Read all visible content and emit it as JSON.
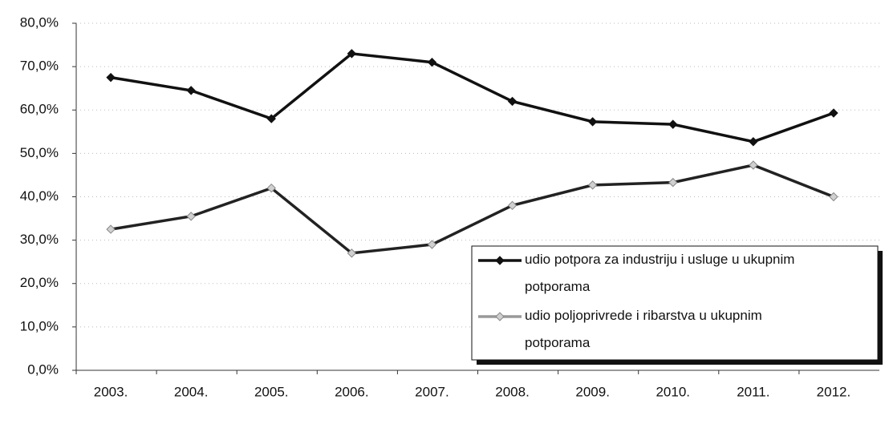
{
  "chart_data": {
    "type": "line",
    "categories": [
      "2003.",
      "2004.",
      "2005.",
      "2006.",
      "2007.",
      "2008.",
      "2009.",
      "2010.",
      "2011.",
      "2012."
    ],
    "series": [
      {
        "name": "udio potpora za industriju i usluge u ukupnim potporama",
        "color": "#111111",
        "marker_color": "#111111",
        "values": [
          67.5,
          64.5,
          58,
          73,
          71,
          62,
          57.3,
          56.7,
          52.7,
          59.3
        ]
      },
      {
        "name": "udio poljoprivrede i ribarstva u ukupnim potporama",
        "color": "#222222",
        "marker_color": "#d0d0d0",
        "values": [
          32.5,
          35.5,
          42,
          27,
          29,
          38,
          42.7,
          43.3,
          47.3,
          40
        ]
      }
    ],
    "ylim": [
      0,
      80
    ],
    "yticks": [
      {
        "value": 0,
        "label": "0,0%"
      },
      {
        "value": 10,
        "label": "10,0%"
      },
      {
        "value": 20,
        "label": "20,0%"
      },
      {
        "value": 30,
        "label": "30,0%"
      },
      {
        "value": 40,
        "label": "40,0%"
      },
      {
        "value": 50,
        "label": "50,0%"
      },
      {
        "value": 60,
        "label": "60,0%"
      },
      {
        "value": 70,
        "label": "70,0%"
      },
      {
        "value": 80,
        "label": "80,0%"
      }
    ],
    "grid": true,
    "legend": "lower right"
  }
}
